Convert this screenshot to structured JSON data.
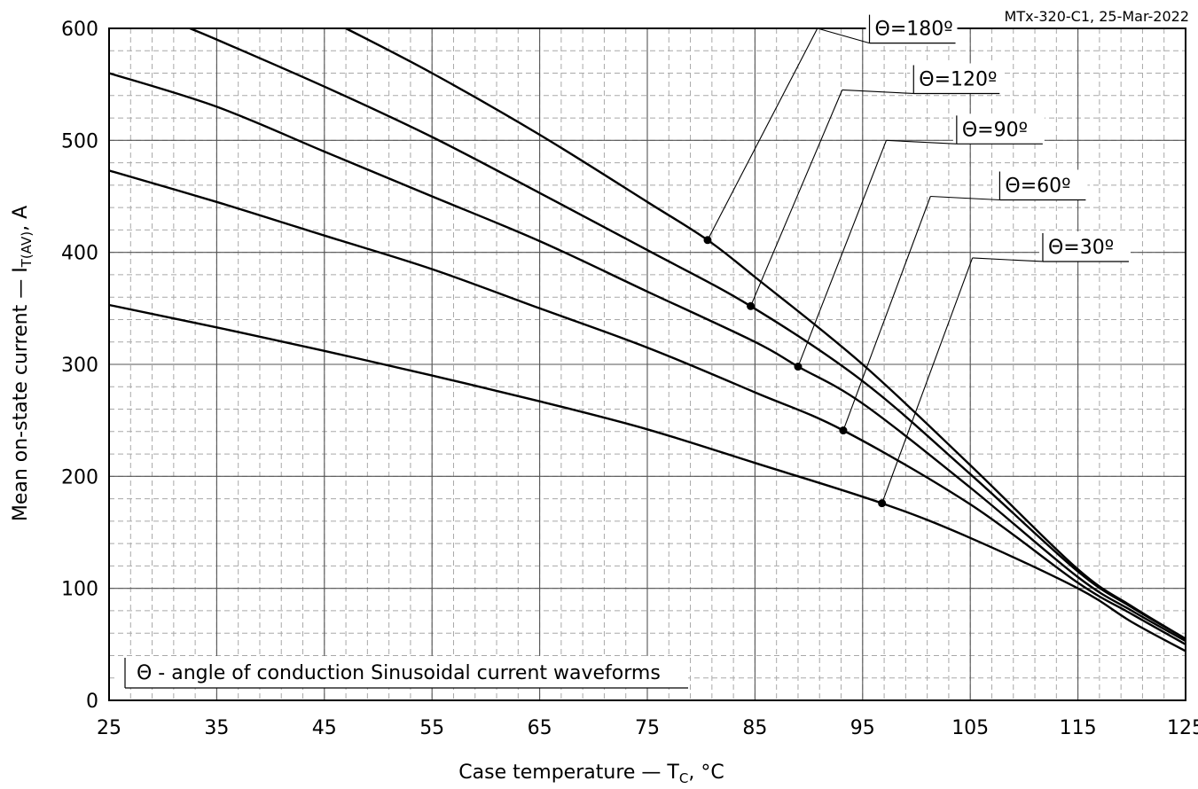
{
  "note": "MTx-320-C1, 25-Mar-2022",
  "chart_data": {
    "type": "line",
    "xlabel": {
      "prefix": "Case temperature — T",
      "sub": "C",
      "suffix": ", °C"
    },
    "ylabel": {
      "prefix": "Mean on-state current — I",
      "sub": "T(AV)",
      "suffix": ", A"
    },
    "xlim": [
      25,
      125
    ],
    "ylim": [
      0,
      600
    ],
    "x_ticks": [
      25,
      35,
      45,
      55,
      65,
      75,
      85,
      95,
      105,
      115,
      125
    ],
    "y_ticks": [
      0,
      100,
      200,
      300,
      400,
      500,
      600
    ],
    "grid": true,
    "series": [
      {
        "name": "Θ=180º",
        "x": [
          47,
          55,
          65,
          75,
          80.6,
          85,
          95,
          105,
          115,
          120,
          125
        ],
        "y": [
          600,
          560,
          505,
          445,
          411,
          378,
          300,
          210,
          117,
          84,
          55
        ],
        "marker": {
          "x": 80.6,
          "y": 411
        },
        "label_anchor": {
          "x": 90.8,
          "y": 600
        }
      },
      {
        "name": "Θ=120º",
        "x": [
          32.5,
          35,
          45,
          55,
          65,
          75,
          84.6,
          95,
          105,
          115,
          120,
          125
        ],
        "y": [
          600,
          590,
          548,
          503,
          453,
          402,
          352,
          285,
          202,
          115,
          83,
          55
        ],
        "marker": {
          "x": 84.6,
          "y": 352
        },
        "label_anchor": {
          "x": 93.1,
          "y": 545
        }
      },
      {
        "name": "Θ=90º",
        "x": [
          25,
          35,
          45,
          55,
          65,
          75,
          85,
          89,
          95,
          105,
          115,
          120,
          125
        ],
        "y": [
          560,
          530,
          490,
          450,
          410,
          365,
          320,
          298,
          265,
          190,
          110,
          80,
          53
        ],
        "marker": {
          "x": 89,
          "y": 298
        },
        "label_anchor": {
          "x": 97.2,
          "y": 500
        }
      },
      {
        "name": "Θ=60º",
        "x": [
          25,
          35,
          45,
          55,
          65,
          75,
          85,
          93.2,
          105,
          115,
          120,
          125
        ],
        "y": [
          473,
          445,
          415,
          385,
          350,
          315,
          275,
          241,
          175,
          105,
          77,
          50
        ],
        "marker": {
          "x": 93.2,
          "y": 241
        },
        "label_anchor": {
          "x": 101.3,
          "y": 450
        }
      },
      {
        "name": "Θ=30º",
        "x": [
          25,
          35,
          45,
          55,
          65,
          75,
          85,
          96.8,
          105,
          115,
          120,
          125
        ],
        "y": [
          353,
          333,
          312,
          290,
          267,
          242,
          212,
          176,
          145,
          100,
          70,
          44
        ],
        "marker": {
          "x": 96.8,
          "y": 176
        },
        "label_anchor": {
          "x": 105.2,
          "y": 395
        }
      }
    ],
    "callout_labels": [
      {
        "text": "Θ=180º",
        "x": 95.8,
        "y": 590
      },
      {
        "text": "Θ=120º",
        "x": 99.9,
        "y": 545
      },
      {
        "text": "Θ=90º",
        "x": 103.9,
        "y": 500
      },
      {
        "text": "Θ=60º",
        "x": 107.9,
        "y": 450
      },
      {
        "text": "Θ=30º",
        "x": 111.9,
        "y": 395
      }
    ],
    "annotation": "Θ - angle of conduction Sinusoidal current waveforms"
  }
}
